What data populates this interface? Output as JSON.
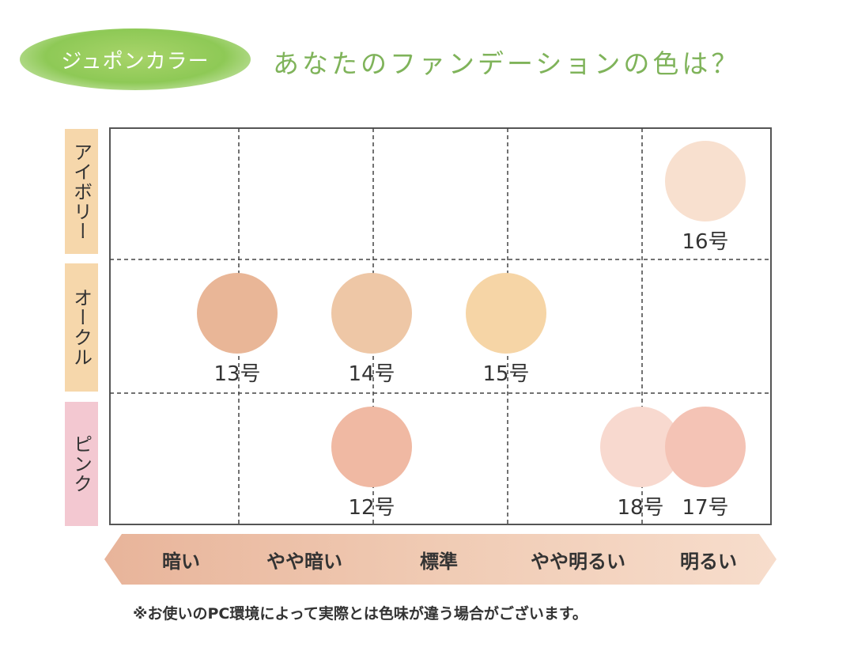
{
  "header": {
    "badge": "ジュポンカラー",
    "title": "あなたのファンデーションの色は？"
  },
  "row_labels": {
    "ivory": "アイボリー",
    "ochre": "オークル",
    "pink": "ピンク"
  },
  "scale": {
    "labels": [
      "暗い",
      "やや暗い",
      "標準",
      "やや明るい",
      "明るい"
    ]
  },
  "footnote": "※お使いのPC環境によって実際とは色味が違う場合がございます。",
  "colors": {
    "ivory_label_bg": "#f6d7ab",
    "ochre_label_bg": "#f6d7ab",
    "pink_label_bg": "#f3c8d1",
    "badge_green": "#8ec956",
    "title_green": "#7fb35a",
    "scale_bar": "#eec2a8"
  },
  "chart_data": {
    "type": "scatter",
    "rows": [
      "アイボリー",
      "オークル",
      "ピンク"
    ],
    "columns": [
      "暗い",
      "やや暗い",
      "標準",
      "やや明るい",
      "明るい"
    ],
    "points": [
      {
        "label": "16号",
        "row": "アイボリー",
        "column": "明るい",
        "color": "#f8e0cf"
      },
      {
        "label": "13号",
        "row": "オークル",
        "column": "暗い",
        "color": "#e9b697"
      },
      {
        "label": "14号",
        "row": "オークル",
        "column": "やや暗い",
        "color": "#eec7a6"
      },
      {
        "label": "15号",
        "row": "オークル",
        "column": "標準",
        "color": "#f6d5a6"
      },
      {
        "label": "12号",
        "row": "ピンク",
        "column": "やや暗い",
        "color": "#f0b9a3"
      },
      {
        "label": "18号",
        "row": "ピンク",
        "column": "やや明るい",
        "color": "#f8d9cf"
      },
      {
        "label": "17号",
        "row": "ピンク",
        "column": "明るい",
        "color": "#f4c3b5"
      }
    ]
  }
}
